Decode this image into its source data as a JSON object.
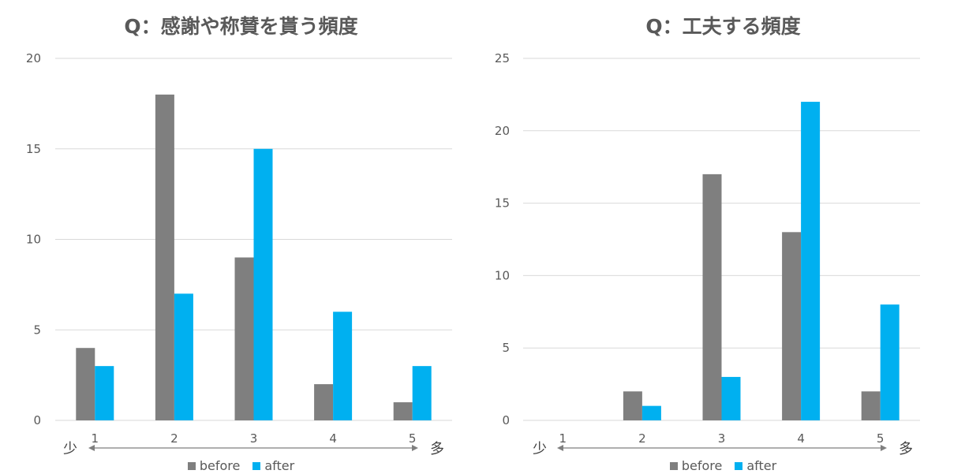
{
  "colors": {
    "before": "#7F7F7F",
    "after": "#00B0F0",
    "grid": "#D9D9D9",
    "arrow": "#7F7F7F",
    "text": "#595959"
  },
  "scale_labels": {
    "low": "少",
    "high": "多"
  },
  "chart_data": [
    {
      "type": "bar",
      "title": "Q：感謝や称賛を貰う頻度",
      "categories": [
        "1",
        "2",
        "3",
        "4",
        "5"
      ],
      "series": [
        {
          "name": "before",
          "values": [
            4,
            18,
            9,
            2,
            1
          ]
        },
        {
          "name": "after",
          "values": [
            3,
            7,
            15,
            6,
            3
          ]
        }
      ],
      "ylim": [
        0,
        20
      ],
      "yticks": [
        "0",
        "5",
        "10",
        "15",
        "20"
      ],
      "grid": true,
      "legend": "bottom"
    },
    {
      "type": "bar",
      "title": "Q：工夫する頻度",
      "categories": [
        "1",
        "2",
        "3",
        "4",
        "5"
      ],
      "series": [
        {
          "name": "before",
          "values": [
            0,
            2,
            17,
            13,
            2
          ]
        },
        {
          "name": "after",
          "values": [
            0,
            1,
            3,
            22,
            8
          ]
        }
      ],
      "ylim": [
        0,
        25
      ],
      "yticks": [
        "0",
        "5",
        "10",
        "15",
        "20",
        "25"
      ],
      "grid": true,
      "legend": "bottom"
    }
  ]
}
